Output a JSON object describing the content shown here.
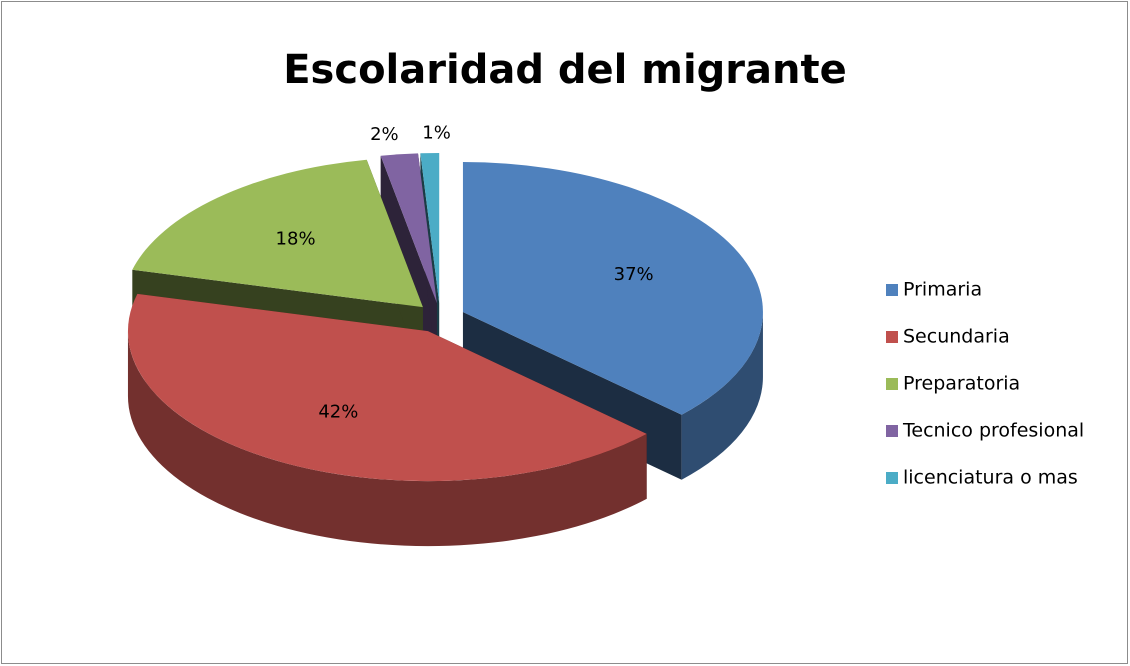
{
  "chart_data": {
    "type": "pie",
    "title": "Escolaridad del migrante",
    "categories": [
      "Primaria",
      "Secundaria",
      "Preparatoria",
      "Tecnico profesional",
      "licenciatura o mas"
    ],
    "values": [
      37,
      42,
      18,
      2,
      1
    ],
    "value_labels": [
      "37%",
      "42%",
      "18%",
      "2%",
      "1%"
    ],
    "colors": [
      "#4f81bd",
      "#c0504d",
      "#9bbb59",
      "#8064a2",
      "#4bacc6"
    ],
    "legend": "right"
  }
}
